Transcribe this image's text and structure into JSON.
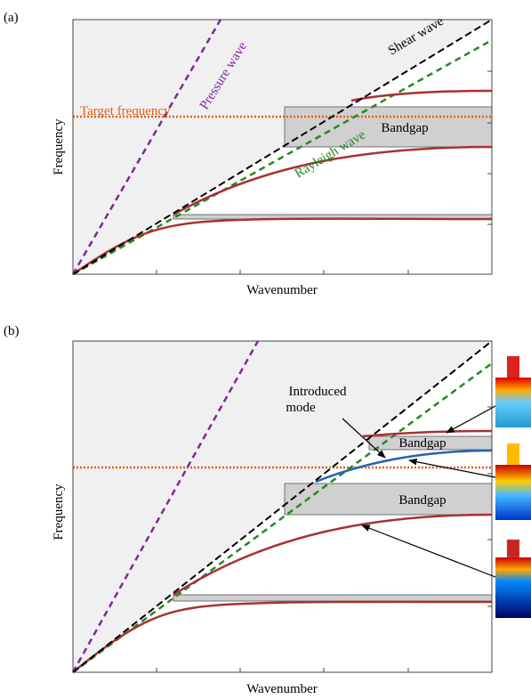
{
  "panel_a": {
    "label": "(a)",
    "y_label": "Frequency",
    "x_label": "Wavenumber",
    "target": "Target frequency",
    "pressure": "Pressure wave",
    "shear": "Shear wave",
    "rayleigh": "Rayleigh wave",
    "bandgap": "Bandgap"
  },
  "panel_b": {
    "label": "(b)",
    "y_label": "Frequency",
    "x_label": "Wavenumber",
    "introduced": [
      "Introduced",
      "mode"
    ],
    "bandgaps": [
      "Bandgap",
      "Bandgap"
    ]
  }
}
